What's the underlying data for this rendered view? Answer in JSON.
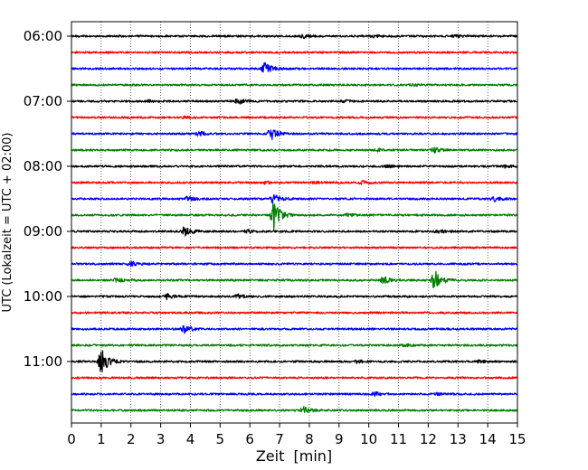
{
  "chart_data": {
    "type": "line",
    "title": "",
    "xlabel": "Zeit  [min]",
    "ylabel": "UTC (Lokalzeit = UTC + 02:00)",
    "xlim": [
      0,
      15
    ],
    "x_ticks": [
      "0",
      "1",
      "2",
      "3",
      "4",
      "5",
      "6",
      "7",
      "8",
      "9",
      "10",
      "11",
      "12",
      "13",
      "14",
      "15"
    ],
    "y_ticks": [
      "06:00",
      "07:00",
      "08:00",
      "09:00",
      "10:00",
      "11:00"
    ],
    "grid": "vertical dotted lines at each minute",
    "trace_interval_minutes": 15,
    "color_cycle": [
      "#000000",
      "#ff0000",
      "#0000ff",
      "#008000"
    ],
    "series": [
      {
        "start": "06:00",
        "events": [
          {
            "t": 7.8,
            "amp": 0.2
          },
          {
            "t": 10.1,
            "amp": 0.15
          },
          {
            "t": 12.9,
            "amp": 0.12
          }
        ]
      },
      {
        "start": "06:15",
        "events": []
      },
      {
        "start": "06:30",
        "events": [
          {
            "t": 6.5,
            "amp": 0.7
          }
        ]
      },
      {
        "start": "06:45",
        "events": [
          {
            "t": 11.5,
            "amp": 0.1
          }
        ]
      },
      {
        "start": "07:00",
        "events": [
          {
            "t": 5.6,
            "amp": 0.35
          },
          {
            "t": 2.6,
            "amp": 0.15
          },
          {
            "t": 9.2,
            "amp": 0.12
          }
        ]
      },
      {
        "start": "07:15",
        "events": [
          {
            "t": 3.8,
            "amp": 0.12
          }
        ]
      },
      {
        "start": "07:30",
        "events": [
          {
            "t": 4.3,
            "amp": 0.25
          },
          {
            "t": 6.7,
            "amp": 0.8
          }
        ]
      },
      {
        "start": "07:45",
        "events": [
          {
            "t": 12.2,
            "amp": 0.3
          },
          {
            "t": 10.3,
            "amp": 0.15
          }
        ]
      },
      {
        "start": "08:00",
        "events": [
          {
            "t": 10.6,
            "amp": 0.2
          },
          {
            "t": 14.6,
            "amp": 0.15
          }
        ]
      },
      {
        "start": "08:15",
        "events": [
          {
            "t": 9.8,
            "amp": 0.2
          },
          {
            "t": 6.5,
            "amp": 0.15
          },
          {
            "t": 8.2,
            "amp": 0.12
          }
        ]
      },
      {
        "start": "08:30",
        "events": [
          {
            "t": 3.9,
            "amp": 0.25
          },
          {
            "t": 6.8,
            "amp": 0.6
          },
          {
            "t": 14.2,
            "amp": 0.3
          }
        ]
      },
      {
        "start": "08:45",
        "events": [
          {
            "t": 6.8,
            "amp": 1.8
          },
          {
            "t": 9.3,
            "amp": 0.15
          }
        ]
      },
      {
        "start": "09:00",
        "events": [
          {
            "t": 3.8,
            "amp": 0.65
          },
          {
            "t": 12.3,
            "amp": 0.2
          },
          {
            "t": 5.9,
            "amp": 0.15
          }
        ]
      },
      {
        "start": "09:15",
        "events": []
      },
      {
        "start": "09:30",
        "events": [
          {
            "t": 2.0,
            "amp": 0.3
          }
        ]
      },
      {
        "start": "09:45",
        "events": [
          {
            "t": 1.5,
            "amp": 0.25
          },
          {
            "t": 10.5,
            "amp": 0.45
          },
          {
            "t": 12.2,
            "amp": 1.4
          }
        ]
      },
      {
        "start": "10:00",
        "events": [
          {
            "t": 3.2,
            "amp": 0.3
          },
          {
            "t": 5.6,
            "amp": 0.25
          }
        ]
      },
      {
        "start": "10:15",
        "events": []
      },
      {
        "start": "10:30",
        "events": [
          {
            "t": 3.8,
            "amp": 0.5
          }
        ]
      },
      {
        "start": "10:45",
        "events": [
          {
            "t": 11.2,
            "amp": 0.12
          }
        ]
      },
      {
        "start": "11:00",
        "events": [
          {
            "t": 1.0,
            "amp": 1.6
          },
          {
            "t": 9.6,
            "amp": 0.2
          },
          {
            "t": 13.7,
            "amp": 0.12
          }
        ]
      },
      {
        "start": "11:15",
        "events": []
      },
      {
        "start": "11:30",
        "events": [
          {
            "t": 10.2,
            "amp": 0.25
          },
          {
            "t": 12.3,
            "amp": 0.12
          }
        ]
      },
      {
        "start": "11:45",
        "events": [
          {
            "t": 7.8,
            "amp": 0.45
          }
        ]
      }
    ]
  }
}
